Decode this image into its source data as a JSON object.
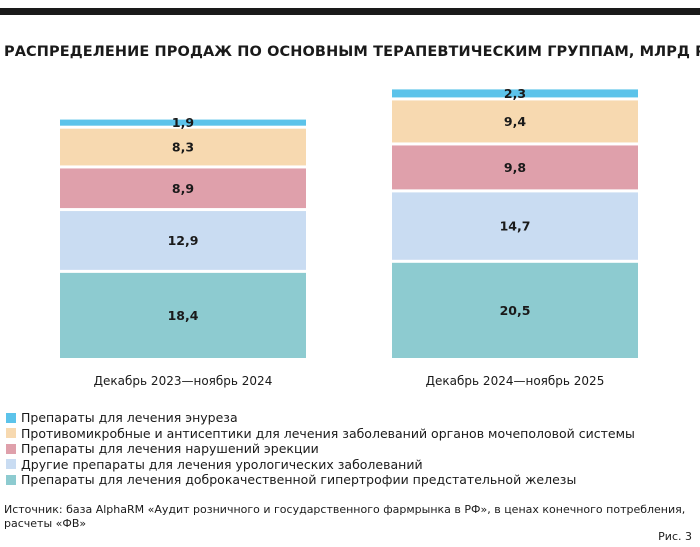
{
  "title": "РАСПРЕДЕЛЕНИЕ ПРОДАЖ ПО ОСНОВНЫМ ТЕРАПЕВТИЧЕСКИМ ГРУППАМ, МЛРД РУБ.",
  "chart_data": {
    "type": "bar",
    "stacked": true,
    "title": "РАСПРЕДЕЛЕНИЕ ПРОДАЖ ПО ОСНОВНЫМ ТЕРАПЕВТИЧЕСКИМ ГРУППАМ, МЛРД РУБ.",
    "categories": [
      "Декабрь 2023—ноябрь 2024",
      "Декабрь 2024—ноябрь 2025"
    ],
    "series": [
      {
        "name": "Препараты для лечения доброкачественной гипертрофии предстательной железы",
        "values": [
          18.4,
          20.5
        ],
        "labels": [
          "18,4",
          "20,5"
        ],
        "color": "#8dcbd0"
      },
      {
        "name": "Другие препараты для лечения урологических заболеваний",
        "values": [
          12.9,
          14.7
        ],
        "labels": [
          "12,9",
          "14,7"
        ],
        "color": "#c9dcf2"
      },
      {
        "name": "Препараты для лечения нарушений эрекции",
        "values": [
          8.9,
          9.8
        ],
        "labels": [
          "8,9",
          "9,8"
        ],
        "color": "#dfa0ab"
      },
      {
        "name": "Противомикробные и антисептики для лечения заболеваний органов мочеполовой системы",
        "values": [
          8.3,
          9.4
        ],
        "labels": [
          "8,3",
          "9,4"
        ],
        "color": "#f7d9b0"
      },
      {
        "name": "Препараты для лечения энуреза",
        "values": [
          1.9,
          2.3
        ],
        "labels": [
          "1,9",
          "2,3"
        ],
        "color": "#5cc3ea"
      }
    ],
    "legend_order": [
      4,
      3,
      2,
      1,
      0
    ],
    "xlabel": "",
    "ylabel": "",
    "ylim": [
      0,
      57
    ]
  },
  "source": "Источник: база AlphaRM «Аудит розничного и государственного фармрынка в РФ», в ценах конечного потребления, расчеты «ФВ»",
  "figure_label": "Рис. 3"
}
